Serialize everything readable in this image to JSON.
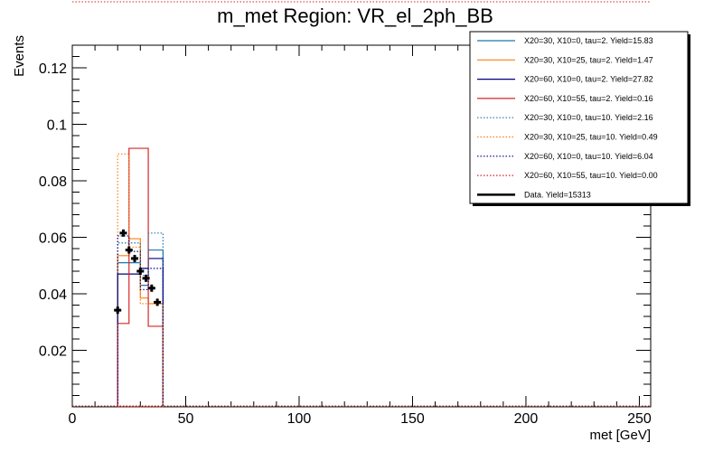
{
  "chart_data": {
    "type": "histogram",
    "title": "m_met Region: VR_el_2ph_BB",
    "xlabel": "met [GeV]",
    "ylabel": "Events",
    "xlim": [
      0,
      255
    ],
    "ylim": [
      0,
      0.128
    ],
    "x_ticks": [
      0,
      50,
      100,
      150,
      200,
      250
    ],
    "x_tick_labels": [
      "0",
      "50",
      "100",
      "150",
      "200",
      "250"
    ],
    "y_ticks": [
      0.02,
      0.04,
      0.06,
      0.08,
      0.1,
      0.12
    ],
    "y_tick_labels": [
      "0.02",
      "0.04",
      "0.06",
      "0.08",
      "0.1",
      "0.12"
    ],
    "legend_position": "top-right",
    "bin_edges": [
      20,
      25,
      30,
      33.5,
      40
    ],
    "series": [
      {
        "name": "X20=30, X10=0, tau=2. Yield=15.83",
        "color": "#1f77b4",
        "style": "solid",
        "values": [
          0.051,
          0.051,
          0.043,
          0.0555
        ]
      },
      {
        "name": "X20=30, X10=25, tau=2. Yield=1.47",
        "color": "#ff7f0e",
        "style": "solid",
        "values": [
          0.0535,
          0.0595,
          0.0385,
          0.0365
        ]
      },
      {
        "name": "X20=60, X10=0, tau=2. Yield=27.82",
        "color": "#000080",
        "style": "solid",
        "values": [
          0.047,
          0.047,
          0.049,
          0.0525
        ]
      },
      {
        "name": "X20=60, X10=55, tau=2. Yield=0.16",
        "color": "#d62728",
        "style": "solid",
        "values": [
          0.0295,
          0.0915,
          0.0915,
          0.0285
        ]
      },
      {
        "name": "X20=30, X10=0, tau=10. Yield=2.16",
        "color": "#1f77b4",
        "style": "dotted",
        "values": [
          0.058,
          0.058,
          0.0465,
          0.0615
        ]
      },
      {
        "name": "X20=30, X10=25, tau=10. Yield=0.49",
        "color": "#ff7f0e",
        "style": "dotted",
        "values": [
          0.0895,
          0.0565,
          0.0365,
          0.0365
        ]
      },
      {
        "name": "X20=60, X10=0, tau=10. Yield=6.04",
        "color": "#000080",
        "style": "dotted",
        "values": [
          0.0605,
          0.055,
          0.0415,
          0.049
        ]
      },
      {
        "name": "X20=60, X10=55, tau=10. Yield=0.00",
        "color": "#d62728",
        "style": "dotted",
        "values": [
          0,
          0,
          0,
          0
        ]
      }
    ],
    "data": {
      "name": "Data. Yield=15313",
      "color": "#000000",
      "x": [
        20,
        22.5,
        25,
        27.5,
        30,
        32.5,
        35,
        37.5
      ],
      "y": [
        0.0342,
        0.0615,
        0.0555,
        0.0525,
        0.048,
        0.0455,
        0.042,
        0.037
      ]
    }
  }
}
